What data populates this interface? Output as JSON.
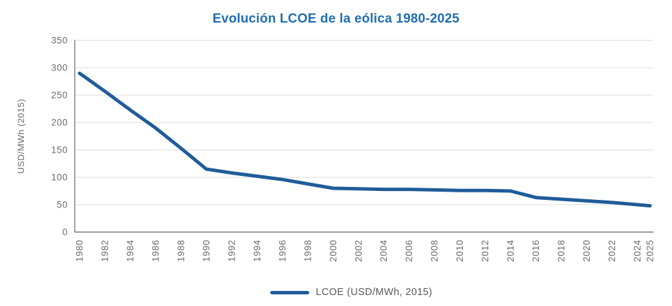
{
  "title": "Evolución LCOE de la eólica 1980-2025",
  "colors": {
    "title_blue": "#1f6db3",
    "line_blue": "#1f5c99",
    "grid_gray": "#e3e3e3",
    "spine_gray": "#7a7a7a",
    "tick_text_gray": "#6b6b6b",
    "legend_text_gray": "#58595b",
    "background": "#ffffff"
  },
  "chart_data": {
    "type": "line",
    "title": "Evolución LCOE de la eólica 1980-2025",
    "x": [
      1980,
      1982,
      1984,
      1986,
      1988,
      1990,
      1992,
      1994,
      1996,
      1998,
      2000,
      2002,
      2004,
      2006,
      2008,
      2010,
      2012,
      2014,
      2016,
      2018,
      2020,
      2022,
      2024,
      2025
    ],
    "series": [
      {
        "name": "LCOE (USD/MWh, 2015)",
        "values": [
          290,
          257,
          223,
          190,
          153,
          115,
          108,
          102,
          96,
          88,
          80,
          79,
          78,
          78,
          77,
          76,
          76,
          75,
          63,
          60,
          57,
          54,
          50,
          48
        ],
        "color": "#1f5c99",
        "line_width": 5
      }
    ],
    "xlabel": "",
    "ylabel": "USD/MWh (2015)",
    "ylim": [
      0,
      350
    ],
    "yticks": [
      0,
      50,
      100,
      150,
      200,
      250,
      300,
      350
    ],
    "xtick_rotation": 90,
    "grid": "horizontal",
    "legend_position": "bottom-center"
  },
  "legend": {
    "label": "LCOE (USD/MWh, 2015)"
  }
}
